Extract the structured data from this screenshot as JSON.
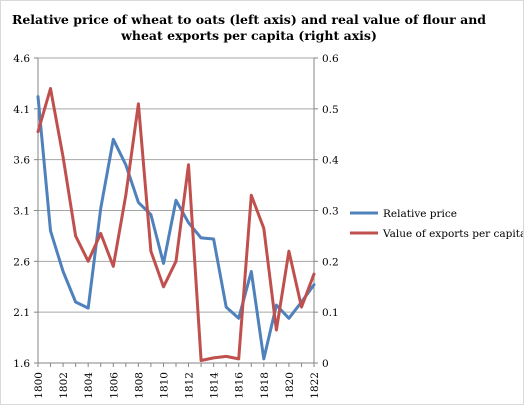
{
  "chart_data": {
    "type": "line",
    "title_lines": [
      "Relative price of wheat to oats (left axis) and real value of flour and",
      "wheat exports per capita (right axis)"
    ],
    "x": [
      1800,
      1801,
      1802,
      1803,
      1804,
      1805,
      1806,
      1807,
      1808,
      1809,
      1810,
      1811,
      1812,
      1813,
      1814,
      1815,
      1816,
      1817,
      1818,
      1819,
      1820,
      1821,
      1822
    ],
    "x_tick_labels": [
      "1800",
      "1802",
      "1804",
      "1806",
      "1808",
      "1810",
      "1812",
      "1814",
      "1816",
      "1818",
      "1820",
      "1822"
    ],
    "left_axis": {
      "ylim": [
        1.6,
        4.6
      ],
      "ticks": [
        "1.6",
        "2.1",
        "2.6",
        "3.1",
        "3.6",
        "4.1",
        "4.6"
      ]
    },
    "right_axis": {
      "ylim": [
        0,
        0.6
      ],
      "ticks": [
        "0",
        "0.1",
        "0.2",
        "0.3",
        "0.4",
        "0.5",
        "0.6"
      ]
    },
    "legend_position": "right",
    "grid": true,
    "series": [
      {
        "name": "Relative price",
        "axis": "left",
        "color": "#4f81bd",
        "values": [
          4.22,
          2.9,
          2.5,
          2.2,
          2.14,
          3.12,
          3.8,
          3.55,
          3.18,
          3.06,
          2.58,
          3.2,
          2.98,
          2.83,
          2.82,
          2.15,
          2.04,
          2.5,
          1.64,
          2.17,
          2.04,
          2.2,
          2.37
        ]
      },
      {
        "name": "Value of exports per capita",
        "axis": "right",
        "color": "#c0504d",
        "values": [
          0.455,
          0.54,
          0.405,
          0.25,
          0.2,
          0.255,
          0.19,
          0.33,
          0.51,
          0.22,
          0.15,
          0.2,
          0.39,
          0.005,
          0.01,
          0.013,
          0.008,
          0.33,
          0.265,
          0.065,
          0.22,
          0.11,
          0.175
        ]
      }
    ]
  }
}
